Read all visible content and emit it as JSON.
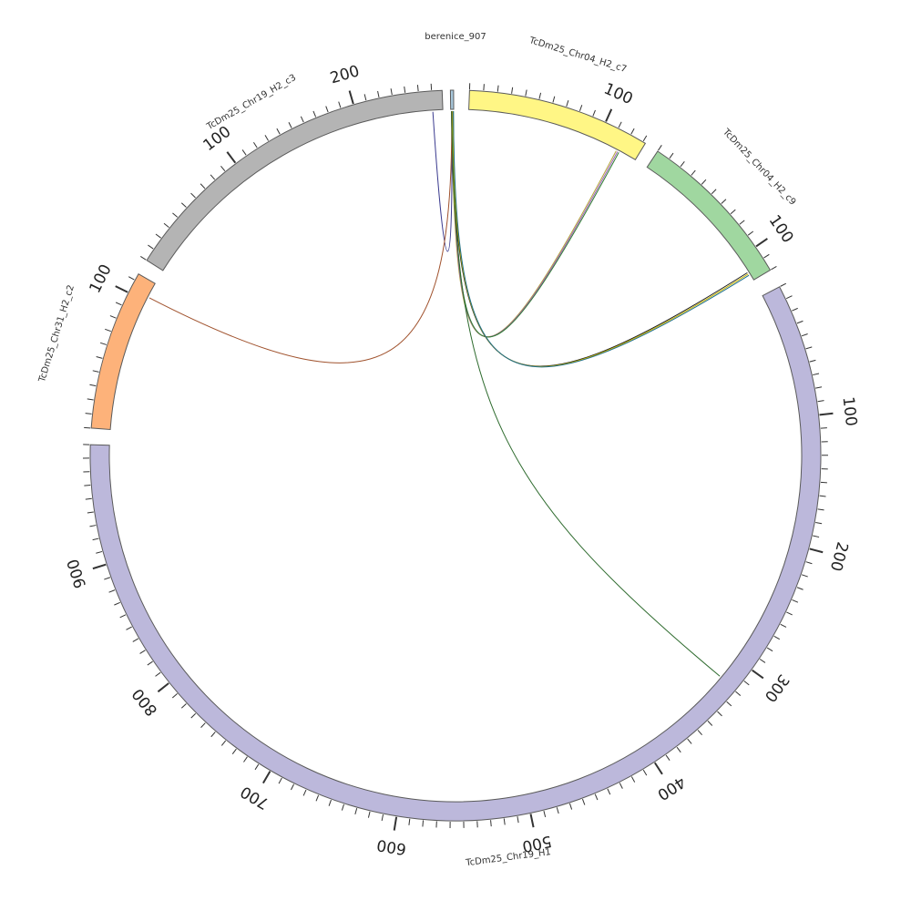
{
  "segments": [
    {
      "id": "c7",
      "label": "TcDm25_Chr04_H2_c7",
      "color": "#fff685",
      "length": 132,
      "ticks": [
        {
          "value": 100,
          "label": "100"
        }
      ]
    },
    {
      "id": "c9",
      "label": "TcDm25_Chr04_H2_c9",
      "color": "#a0d7a0",
      "length": 120,
      "ticks": [
        {
          "value": 100,
          "label": "100"
        }
      ]
    },
    {
      "id": "h1",
      "label": "TcDm25_Chr19_H1",
      "color": "#bcb8db",
      "length": 990,
      "ticks": [
        {
          "value": 100,
          "label": "100"
        },
        {
          "value": 200,
          "label": "200"
        },
        {
          "value": 300,
          "label": "300"
        },
        {
          "value": 400,
          "label": "400"
        },
        {
          "value": 500,
          "label": "500"
        },
        {
          "value": 600,
          "label": "600"
        },
        {
          "value": 700,
          "label": "700"
        },
        {
          "value": 800,
          "label": "800"
        },
        {
          "value": 900,
          "label": "900"
        }
      ]
    },
    {
      "id": "c2",
      "label": "TcDm25_Chr31_H2_c2",
      "color": "#fdb27a",
      "length": 115,
      "ticks": [
        {
          "value": 100,
          "label": "100"
        }
      ]
    },
    {
      "id": "c3",
      "label": "TcDm25_Chr19_H2_c3",
      "color": "#b4b4b4",
      "length": 268,
      "ticks": [
        {
          "value": 100,
          "label": "100"
        },
        {
          "value": 200,
          "label": "200"
        }
      ]
    },
    {
      "id": "ber",
      "label": "berenice_907",
      "color": "#a8c8dc",
      "length": 4,
      "ticks": []
    }
  ],
  "links": [
    {
      "from": "ber",
      "to": "c7",
      "color": "#b3a43a"
    },
    {
      "from": "ber",
      "to": "c7",
      "color": "#9b59b6"
    },
    {
      "from": "ber",
      "to": "c7",
      "color": "#2e7d32"
    },
    {
      "from": "ber",
      "to": "c9",
      "color": "#1a1a1a"
    },
    {
      "from": "ber",
      "to": "c9",
      "color": "#c8b400"
    },
    {
      "from": "ber",
      "to": "c9",
      "color": "#1f6f8b"
    },
    {
      "from": "ber",
      "to": "c3",
      "color": "#3b3b8f"
    },
    {
      "from": "ber",
      "to": "c2",
      "color": "#a0522d"
    },
    {
      "from": "ber",
      "to": "h1",
      "color": "#2e6b2e"
    }
  ],
  "colors": {
    "tick": "#333333",
    "segment_stroke": "#5a5a5a"
  }
}
